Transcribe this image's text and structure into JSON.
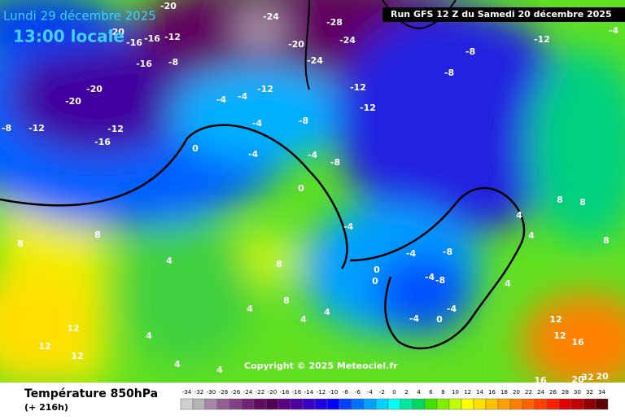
{
  "header": {
    "date": "Lundi 29 décembre 2025",
    "time": "13:00 locale",
    "run": "Run GFS 12 Z du Samedi 20 décembre 2025"
  },
  "map": {
    "copyright": "Copyright © 2025 Meteociel.fr",
    "labels": [
      -20,
      -24,
      -28,
      -20,
      -24,
      -24,
      -12,
      -4,
      -16,
      -16,
      -12,
      -20,
      -16,
      -8,
      -8,
      -8,
      -20,
      -20,
      -12,
      -12,
      -16,
      -8,
      0,
      -4,
      -4,
      -12,
      -12,
      -12,
      -8,
      -4,
      -4,
      -4,
      -8,
      0,
      -4,
      8,
      8,
      4,
      8,
      -4,
      -8,
      -4,
      0,
      0,
      -8,
      -4,
      -4,
      0,
      8,
      8,
      4,
      4,
      8,
      4,
      12,
      12,
      12,
      4,
      4,
      4,
      4,
      8,
      12,
      12,
      16,
      16,
      20,
      20,
      32,
      4,
      4
    ]
  },
  "footer": {
    "title": "Température 850hPa",
    "lead": "(+ 216h)"
  },
  "scale": {
    "values": [
      -34,
      -32,
      -30,
      -28,
      -26,
      -24,
      -22,
      -20,
      -18,
      -16,
      -14,
      -12,
      -10,
      -8,
      -6,
      -4,
      -2,
      0,
      2,
      4,
      6,
      8,
      10,
      12,
      14,
      16,
      18,
      20,
      22,
      24,
      26,
      28,
      30,
      32,
      34
    ],
    "colors": [
      "#d0d0d0",
      "#b4b4b4",
      "#a884a8",
      "#946094",
      "#844084",
      "#722272",
      "#600a60",
      "#520052",
      "#5a0082",
      "#4a00a4",
      "#3a00c4",
      "#2000e2",
      "#0000ff",
      "#0040ff",
      "#0070ff",
      "#00a0ff",
      "#00d0ff",
      "#00ffee",
      "#00e8a0",
      "#00d860",
      "#40e000",
      "#80f000",
      "#c0ff00",
      "#ffff00",
      "#ffe000",
      "#ffc000",
      "#ffa000",
      "#ff8000",
      "#ff6000",
      "#ff4000",
      "#ff2000",
      "#e00000",
      "#c00000",
      "#900000",
      "#600000"
    ]
  }
}
